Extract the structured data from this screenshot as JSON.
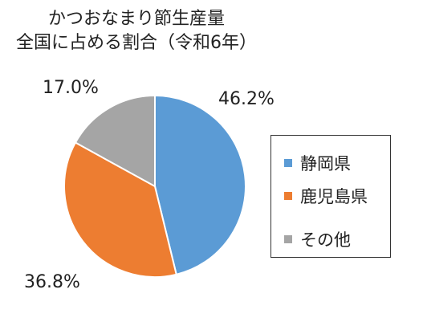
{
  "chart_data": {
    "type": "pie",
    "title": "かつおなまり節生産量",
    "subtitle": "全国に占める割合（令和6年）",
    "series": [
      {
        "name": "静岡県",
        "value": 46.2,
        "label": "46.2%",
        "color": "#5B9BD5"
      },
      {
        "name": "鹿児島県",
        "value": 36.8,
        "label": "36.8%",
        "color": "#ED7D31"
      },
      {
        "name": "その他",
        "value": 17.0,
        "label": "17.0%",
        "color": "#A5A5A5"
      }
    ],
    "legend": {
      "position": "right"
    }
  }
}
